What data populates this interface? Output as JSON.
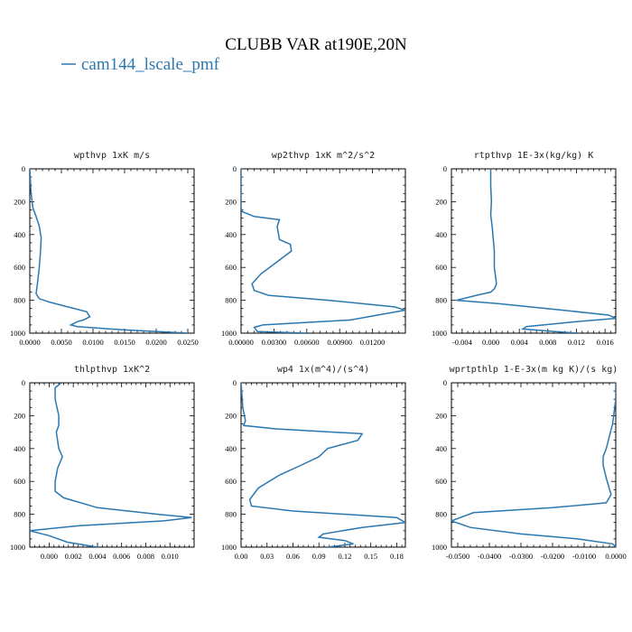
{
  "title": "CLUBB VAR at190E,20N",
  "legend": {
    "label": "cam144_lscale_pmf",
    "color": "#2a78b0"
  },
  "chart_data": [
    {
      "type": "line",
      "title": "wpthvp  1xK m/s",
      "xlim": [
        0,
        0.026
      ],
      "ylim": [
        1000,
        0
      ],
      "xticks": [
        0,
        0.005,
        0.01,
        0.015,
        0.02,
        0.025
      ],
      "xtick_labels": [
        "0.0000",
        "0.0050",
        "0.0100",
        "0.0150",
        "0.0200",
        "0.0250"
      ],
      "yticks": [
        0,
        200,
        400,
        600,
        800,
        1000
      ],
      "ytick_labels": [
        "0",
        "200",
        "400",
        "600",
        "800",
        "1000"
      ],
      "series": [
        {
          "x": [
            0,
            0.0002,
            0.0005,
            0.001,
            0.0015,
            0.0018,
            0.0017,
            0.0015,
            0.0012,
            0.001,
            0.0015,
            0.003,
            0.006,
            0.009,
            0.0095,
            0.0085,
            0.0075,
            0.0065,
            0.0075,
            0.015,
            0.025
          ],
          "y": [
            0,
            150,
            240,
            290,
            350,
            420,
            500,
            600,
            700,
            760,
            790,
            810,
            840,
            870,
            900,
            920,
            930,
            950,
            960,
            980,
            1000
          ]
        }
      ]
    },
    {
      "type": "line",
      "title": "wp2thvp  1xK m^2/s^2",
      "xlim": [
        0,
        0.015
      ],
      "ylim": [
        1000,
        0
      ],
      "xticks": [
        0,
        0.003,
        0.006,
        0.009,
        0.012
      ],
      "xtick_labels": [
        "0.00000",
        "0.00300",
        "0.00600",
        "0.00900",
        "0.01200"
      ],
      "yticks": [
        0,
        200,
        400,
        600,
        800,
        1000
      ],
      "ytick_labels": [
        "0",
        "200",
        "400",
        "600",
        "800",
        "1000"
      ],
      "series": [
        {
          "x": [
            0,
            0,
            0,
            0.0001,
            0.0012,
            0.0035,
            0.0033,
            0.0035,
            0.0045,
            0.0046,
            0.003,
            0.0018,
            0.001,
            0.0012,
            0.0025,
            0.008,
            0.014,
            0.015,
            0.01,
            0.002,
            0.0012,
            0.0015,
            0.006
          ],
          "y": [
            0,
            150,
            240,
            260,
            290,
            310,
            350,
            430,
            460,
            500,
            580,
            640,
            700,
            740,
            770,
            800,
            840,
            860,
            920,
            950,
            965,
            990,
            1000
          ]
        }
      ]
    },
    {
      "type": "line",
      "title": "rtpthvp  1E-3x(kg/kg) K",
      "xlim": [
        -0.0055,
        0.0175
      ],
      "ylim": [
        1000,
        0
      ],
      "xticks": [
        -0.004,
        0,
        0.004,
        0.008,
        0.012,
        0.016
      ],
      "xtick_labels": [
        "-0.004",
        "0.000",
        "0.004",
        "0.008",
        "0.012",
        "0.016"
      ],
      "yticks": [
        0,
        200,
        400,
        600,
        800,
        1000
      ],
      "ytick_labels": [
        "0",
        "200",
        "400",
        "600",
        "800",
        "1000"
      ],
      "series": [
        {
          "x": [
            0,
            0,
            0.0001,
            0,
            0.0002,
            0.0003,
            0.0005,
            0.0005,
            0.0008,
            0.0005,
            0,
            -0.002,
            -0.0048,
            0.001,
            0.01,
            0.0165,
            0.0175,
            0.012,
            0.005,
            0.0045,
            0.009,
            0.012
          ],
          "y": [
            0,
            100,
            200,
            280,
            350,
            400,
            500,
            600,
            700,
            730,
            750,
            770,
            800,
            820,
            860,
            890,
            910,
            930,
            960,
            975,
            990,
            1000
          ]
        }
      ]
    },
    {
      "type": "line",
      "title": "thlpthvp  1xK^2",
      "xlim": [
        -0.0016,
        0.012
      ],
      "ylim": [
        1000,
        0
      ],
      "xticks": [
        0,
        0.002,
        0.004,
        0.006,
        0.008,
        0.01
      ],
      "xtick_labels": [
        "0.000",
        "0.002",
        "0.004",
        "0.006",
        "0.008",
        "0.010"
      ],
      "yticks": [
        0,
        200,
        400,
        600,
        800,
        1000
      ],
      "ytick_labels": [
        "0",
        "200",
        "400",
        "600",
        "800",
        "1000"
      ],
      "series": [
        {
          "x": [
            0.001,
            0.0005,
            0.0005,
            0.0008,
            0.0008,
            0.0006,
            0.0008,
            0.0011,
            0.0007,
            0.0005,
            0.0005,
            0.0012,
            0.004,
            0.009,
            0.0118,
            0.0095,
            0.0025,
            -0.0016,
            0,
            0.0015,
            0.004
          ],
          "y": [
            0,
            30,
            100,
            200,
            260,
            300,
            400,
            450,
            520,
            600,
            660,
            700,
            760,
            800,
            820,
            840,
            870,
            900,
            930,
            970,
            1000
          ]
        }
      ]
    },
    {
      "type": "line",
      "title": "wp4  1x(m^4)/(s^4)",
      "xlim": [
        0,
        0.19
      ],
      "ylim": [
        1000,
        0
      ],
      "xticks": [
        0,
        0.03,
        0.06,
        0.09,
        0.12,
        0.15,
        0.18
      ],
      "xtick_labels": [
        "0.00",
        "0.03",
        "0.06",
        "0.09",
        "0.12",
        "0.15",
        "0.18"
      ],
      "yticks": [
        0,
        200,
        400,
        600,
        800,
        1000
      ],
      "ytick_labels": [
        "0",
        "200",
        "400",
        "600",
        "800",
        "1000"
      ],
      "series": [
        {
          "x": [
            0,
            0.002,
            0.005,
            0.003,
            0.04,
            0.14,
            0.135,
            0.1,
            0.09,
            0.07,
            0.045,
            0.02,
            0.01,
            0.012,
            0.06,
            0.18,
            0.19,
            0.14,
            0.095,
            0.09,
            0.12,
            0.13,
            0.1
          ],
          "y": [
            0,
            150,
            230,
            260,
            280,
            310,
            350,
            400,
            450,
            500,
            560,
            640,
            710,
            750,
            780,
            820,
            850,
            880,
            920,
            940,
            960,
            980,
            1000
          ]
        }
      ]
    },
    {
      "type": "line",
      "title": "wprtpthlp  1-E-3x(m kg K)/(s kg)",
      "xlim": [
        -0.052,
        0
      ],
      "ylim": [
        1000,
        0
      ],
      "xticks": [
        -0.05,
        -0.04,
        -0.03,
        -0.02,
        -0.01,
        0
      ],
      "xtick_labels": [
        "-0.0500",
        "-0.0400",
        "-0.0300",
        "-0.0200",
        "-0.0100",
        "0.0000"
      ],
      "yticks": [
        0,
        200,
        400,
        600,
        800,
        1000
      ],
      "ytick_labels": [
        "0",
        "200",
        "400",
        "600",
        "800",
        "1000"
      ],
      "series": [
        {
          "x": [
            0,
            0,
            -0.001,
            -0.003,
            -0.004,
            -0.004,
            -0.003,
            -0.0015,
            -0.003,
            -0.02,
            -0.045,
            -0.052,
            -0.046,
            -0.03,
            -0.012,
            -0.001,
            0
          ],
          "y": [
            0,
            100,
            250,
            400,
            450,
            500,
            580,
            680,
            730,
            760,
            790,
            840,
            880,
            920,
            950,
            980,
            1000
          ]
        }
      ]
    }
  ]
}
